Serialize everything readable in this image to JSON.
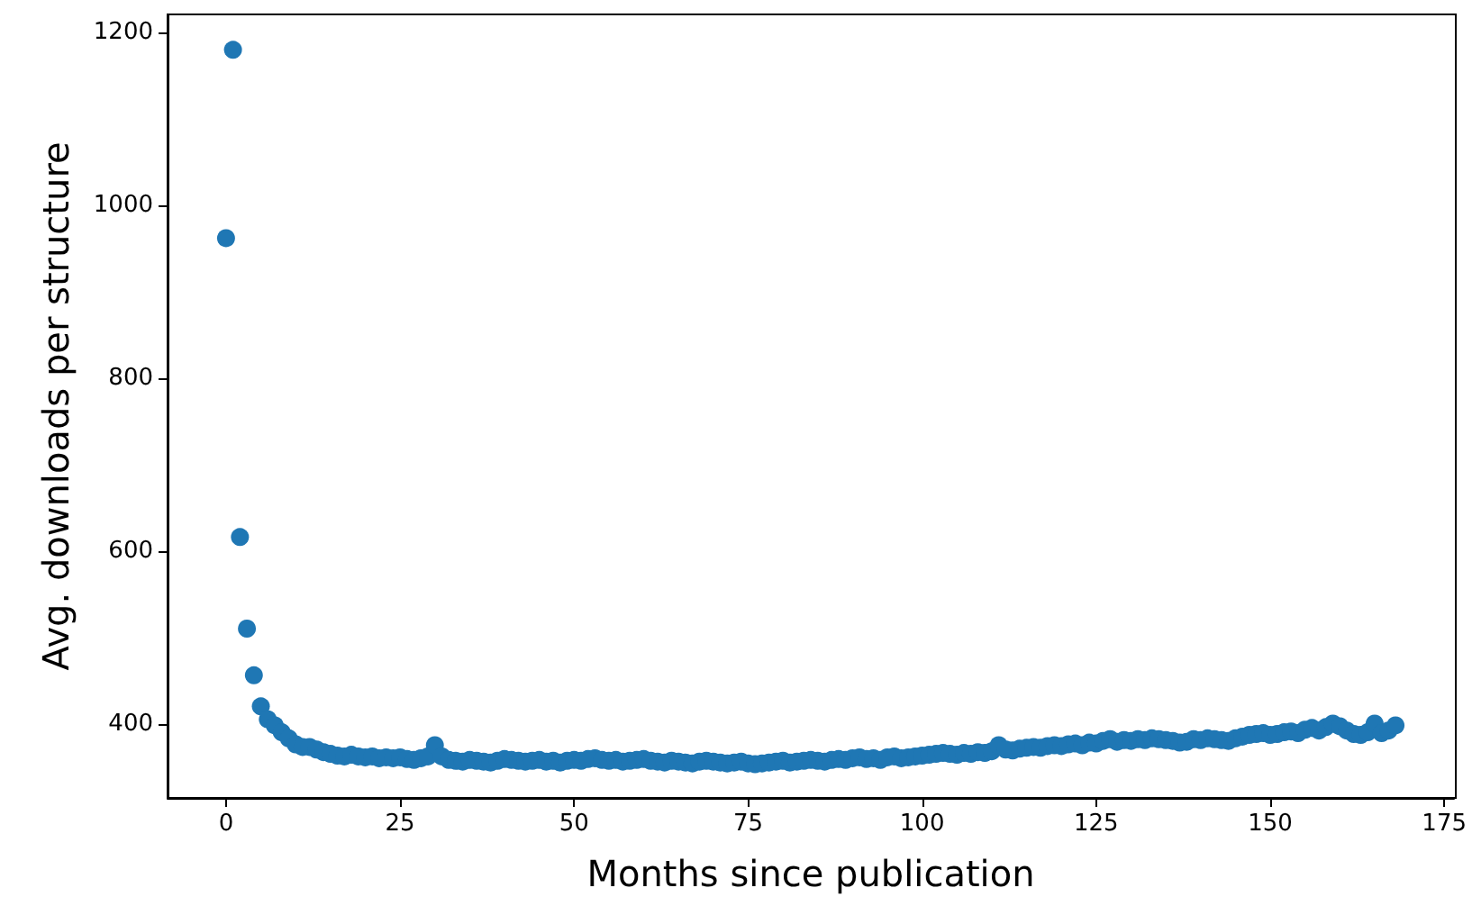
{
  "chart_data": {
    "type": "scatter",
    "xlabel": "Months since publication",
    "ylabel": "Avg. downloads per structure",
    "x": [
      0,
      1,
      2,
      3,
      4,
      5,
      6,
      7,
      8,
      9,
      10,
      11,
      12,
      13,
      14,
      15,
      16,
      17,
      18,
      19,
      20,
      21,
      22,
      23,
      24,
      25,
      26,
      27,
      28,
      29,
      30,
      31,
      32,
      33,
      34,
      35,
      36,
      37,
      38,
      39,
      40,
      41,
      42,
      43,
      44,
      45,
      46,
      47,
      48,
      49,
      50,
      51,
      52,
      53,
      54,
      55,
      56,
      57,
      58,
      59,
      60,
      61,
      62,
      63,
      64,
      65,
      66,
      67,
      68,
      69,
      70,
      71,
      72,
      73,
      74,
      75,
      76,
      77,
      78,
      79,
      80,
      81,
      82,
      83,
      84,
      85,
      86,
      87,
      88,
      89,
      90,
      91,
      92,
      93,
      94,
      95,
      96,
      97,
      98,
      99,
      100,
      101,
      102,
      103,
      104,
      105,
      106,
      107,
      108,
      109,
      110,
      111,
      112,
      113,
      114,
      115,
      116,
      117,
      118,
      119,
      120,
      121,
      122,
      123,
      124,
      125,
      126,
      127,
      128,
      129,
      130,
      131,
      132,
      133,
      134,
      135,
      136,
      137,
      138,
      139,
      140,
      141,
      142,
      143,
      144,
      145,
      146,
      147,
      148,
      149,
      150,
      151,
      152,
      153,
      154,
      155,
      156,
      157,
      158,
      159,
      160,
      161,
      162,
      163,
      164,
      165,
      166,
      167,
      168
    ],
    "series": [
      {
        "color": "#1f77b4",
        "values": [
          962,
          1180,
          616,
          510,
          456,
          420,
          405,
          398,
          390,
          383,
          376,
          373,
          373,
          370,
          367,
          365,
          363,
          362,
          364,
          362,
          361,
          362,
          360,
          361,
          360,
          361,
          359,
          358,
          360,
          362,
          375,
          362,
          358,
          357,
          356,
          358,
          357,
          356,
          355,
          357,
          359,
          358,
          357,
          356,
          357,
          358,
          356,
          357,
          355,
          357,
          358,
          357,
          359,
          360,
          358,
          357,
          358,
          356,
          357,
          358,
          359,
          357,
          356,
          355,
          357,
          356,
          355,
          354,
          356,
          357,
          356,
          355,
          354,
          355,
          356,
          354,
          353,
          354,
          355,
          356,
          357,
          355,
          356,
          357,
          358,
          357,
          356,
          358,
          359,
          358,
          360,
          361,
          359,
          360,
          358,
          361,
          362,
          360,
          361,
          362,
          363,
          364,
          365,
          366,
          365,
          364,
          366,
          365,
          367,
          366,
          368,
          375,
          370,
          369,
          371,
          372,
          373,
          372,
          374,
          375,
          374,
          376,
          377,
          375,
          378,
          377,
          380,
          382,
          379,
          381,
          380,
          382,
          381,
          383,
          382,
          381,
          380,
          378,
          379,
          382,
          381,
          383,
          382,
          381,
          380,
          383,
          385,
          387,
          388,
          389,
          387,
          388,
          390,
          391,
          389,
          393,
          395,
          392,
          396,
          400,
          397,
          392,
          388,
          387,
          390,
          400,
          389,
          392,
          398
        ]
      }
    ],
    "xlim": [
      -8.4,
      176.4
    ],
    "ylim": [
      314,
      1221
    ],
    "xticks": [
      0,
      25,
      50,
      75,
      100,
      125,
      150,
      175
    ],
    "yticks": [
      400,
      600,
      800,
      1000,
      1200
    ],
    "marker": "circle"
  }
}
